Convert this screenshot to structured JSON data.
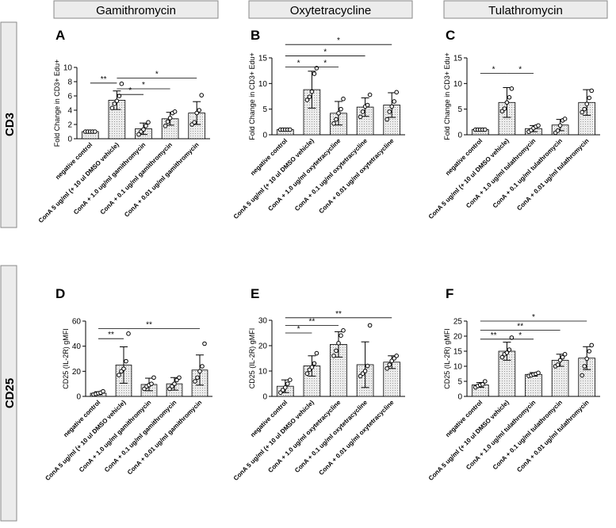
{
  "columns": [
    "Gamithromycin",
    "Oxytetracycline",
    "Tulathromycin"
  ],
  "rows": [
    "CD3",
    "CD25"
  ],
  "chart_data": [
    {
      "type": "bar",
      "panel": "A",
      "row": "CD3",
      "drug": "Gamithromycin",
      "ylabel": "Fold Change in CD3+ Edu+",
      "ylim": [
        0,
        10
      ],
      "yticks": [
        0,
        2,
        4,
        6,
        8,
        10
      ],
      "categories": [
        "negative control",
        "ConA 5 ug/ml  (+ 10 ul DMSO vehicle)",
        "ConA + 1.0 ug/ml gamithromycin",
        "ConA + 0.1 ug/ml gamithromycin",
        "ConA + 0.01 ug/ml gamithromycin"
      ],
      "values": [
        1.0,
        5.4,
        1.4,
        2.8,
        3.6
      ],
      "errors": [
        0.0,
        1.3,
        0.8,
        0.9,
        1.6
      ],
      "points": [
        [
          1,
          1,
          1,
          1,
          1
        ],
        [
          4.3,
          4.9,
          5.3,
          6.0,
          7.7
        ],
        [
          0.6,
          1.0,
          1.3,
          1.8,
          2.3
        ],
        [
          1.8,
          2.4,
          2.9,
          3.6,
          3.8
        ],
        [
          2.0,
          2.3,
          3.6,
          4.0,
          6.1
        ]
      ],
      "significance": [
        {
          "from": 0,
          "to": 1,
          "label": "**",
          "y": 7.8
        },
        {
          "from": 1,
          "to": 2,
          "label": "*",
          "y": 6.2
        },
        {
          "from": 1,
          "to": 3,
          "label": "*",
          "y": 7.0
        },
        {
          "from": 1,
          "to": 4,
          "label": "*",
          "y": 8.5
        }
      ]
    },
    {
      "type": "bar",
      "panel": "B",
      "row": "CD3",
      "drug": "Oxytetracycline",
      "ylabel": "Fold Change in CD3+ Edu+",
      "ylim": [
        0,
        15
      ],
      "yticks": [
        0,
        5,
        10,
        15
      ],
      "categories": [
        "negative control",
        "ConA 5 ug/ml  (+ 10 ul DMSO vehicle)",
        "ConA + 1.0 ug/ml oxytetracycline",
        "ConA + 0.1 ug/ml oxytetracycline",
        "ConA + 0.01 ug/ml oxytetracycline"
      ],
      "values": [
        1.0,
        8.8,
        4.2,
        5.4,
        5.8
      ],
      "errors": [
        0.0,
        3.6,
        2.3,
        1.8,
        2.4
      ],
      "points": [
        [
          1,
          1,
          1,
          1,
          1
        ],
        [
          6.8,
          7.4,
          8.4,
          11.9,
          13.0
        ],
        [
          2.2,
          3.0,
          4.2,
          5.0,
          7.0
        ],
        [
          3.5,
          4.5,
          5.5,
          5.8,
          7.8
        ],
        [
          3.0,
          4.5,
          5.5,
          6.5,
          8.3
        ]
      ],
      "significance": [
        {
          "from": 0,
          "to": 1,
          "label": "*",
          "y": 13.2
        },
        {
          "from": 1,
          "to": 2,
          "label": "*",
          "y": 13.2
        },
        {
          "from": 0,
          "to": 3,
          "label": "*",
          "y": 15.4
        },
        {
          "from": 0,
          "to": 4,
          "label": "*",
          "y": 17.6
        }
      ]
    },
    {
      "type": "bar",
      "panel": "C",
      "row": "CD3",
      "drug": "Tulathromycin",
      "ylabel": "Fold Change in CD3+ Edu+",
      "ylim": [
        0,
        15
      ],
      "yticks": [
        0,
        5,
        10,
        15
      ],
      "categories": [
        "negative control",
        "ConA 5 ug/ml  (+ 10 ul DMSO vehicle)",
        "ConA + 1.0 ug/ml tulathromycin",
        "ConA + 0.1 ug/ml tulathromycin",
        "ConA + 0.01 ug/ml tulathromycin"
      ],
      "values": [
        1.0,
        6.3,
        1.2,
        1.9,
        6.3
      ],
      "errors": [
        0.0,
        2.9,
        0.6,
        1.1,
        2.5
      ],
      "points": [
        [
          1,
          1,
          1,
          1,
          1
        ],
        [
          4.6,
          5.1,
          6.3,
          7.3,
          9.0
        ],
        [
          0.6,
          0.9,
          1.3,
          1.6,
          1.8
        ],
        [
          0.4,
          0.8,
          1.8,
          2.8,
          3.1
        ],
        [
          4.4,
          5.0,
          6.0,
          7.2,
          8.6
        ]
      ],
      "significance": [
        {
          "from": 0,
          "to": 1,
          "label": "*",
          "y": 12.0
        },
        {
          "from": 1,
          "to": 2,
          "label": "*",
          "y": 12.0
        }
      ]
    },
    {
      "type": "bar",
      "panel": "D",
      "row": "CD25",
      "drug": "Gamithromycin",
      "ylabel": "CD25 (IL-2R) gMFI",
      "ylim": [
        0,
        60
      ],
      "yticks": [
        0,
        20,
        40,
        60
      ],
      "categories": [
        "negative control",
        "ConA 5 ug/ml  (+ 10 ul DMSO vehicle)",
        "ConA + 1.0 ug/ml gamithromycin",
        "ConA + 0.1 ug/ml gamithromycin",
        "ConA + 0.01 ug/ml gamithromycin"
      ],
      "values": [
        2.5,
        25.0,
        9.5,
        10.0,
        21.0
      ],
      "errors": [
        1.2,
        14.5,
        5.0,
        5.0,
        12.0
      ],
      "points": [
        [
          1.5,
          2.0,
          2.5,
          3.0,
          4.0
        ],
        [
          17.0,
          20.0,
          22.0,
          28.0,
          50.0
        ],
        [
          6.0,
          8.0,
          9.0,
          10.0,
          15.0
        ],
        [
          6.0,
          8.0,
          10.0,
          13.0,
          15.0
        ],
        [
          12.0,
          15.0,
          20.0,
          24.0,
          42.0
        ]
      ],
      "significance": [
        {
          "from": 0,
          "to": 1,
          "label": "**",
          "y": 46.0
        },
        {
          "from": 0,
          "to": 4,
          "label": "**",
          "y": 54.0
        }
      ]
    },
    {
      "type": "bar",
      "panel": "E",
      "row": "CD25",
      "drug": "Oxytetracycline",
      "ylabel": "CD25 (IL-2R) gMFI",
      "ylim": [
        0,
        30
      ],
      "yticks": [
        0,
        10,
        20,
        30
      ],
      "categories": [
        "negative control",
        "ConA 5 ug/ml  (+ 10 ul DMSO vehicle)",
        "ConA + 1.0 ug/ml oxytetracycline",
        "ConA + 0.1 ug/ml oxytetracycline",
        "ConA + 0.01 ug/ml oxytetracycline"
      ],
      "values": [
        4.0,
        12.0,
        20.5,
        12.5,
        13.5
      ],
      "errors": [
        2.5,
        4.0,
        5.0,
        9.0,
        2.5
      ],
      "points": [
        [
          1.5,
          2.5,
          3.5,
          5.0,
          6.5
        ],
        [
          9.0,
          10.5,
          11.5,
          13.0,
          17.0
        ],
        [
          16.0,
          18.0,
          21.0,
          24.0,
          26.0
        ],
        [
          8.0,
          9.0,
          10.0,
          12.0,
          28.0
        ],
        [
          11.0,
          12.5,
          14.0,
          15.0,
          16.0
        ]
      ],
      "significance": [
        {
          "from": 0,
          "to": 1,
          "label": "*",
          "y": 25.0
        },
        {
          "from": 0,
          "to": 2,
          "label": "**",
          "y": 28.0
        },
        {
          "from": 0,
          "to": 4,
          "label": "**",
          "y": 31.0
        }
      ]
    },
    {
      "type": "bar",
      "panel": "F",
      "row": "CD25",
      "drug": "Tulathromycin",
      "ylabel": "CD25 (IL-2R) gMFI",
      "ylim": [
        0,
        25
      ],
      "yticks": [
        0,
        5,
        10,
        15,
        20,
        25
      ],
      "categories": [
        "negative control",
        "ConA 5 ug/ml  (+ 10 ul DMSO vehicle)",
        "ConA + 1.0 ug/ml tulathromycin",
        "ConA + 0.1 ug/ml tulathromycin",
        "ConA + 0.01 ug/ml tulathromycin"
      ],
      "values": [
        3.8,
        15.0,
        7.3,
        12.0,
        12.7
      ],
      "errors": [
        0.8,
        3.0,
        0.6,
        2.0,
        3.8
      ],
      "points": [
        [
          3.0,
          3.5,
          3.8,
          4.0,
          5.0
        ],
        [
          13.0,
          14.0,
          14.5,
          15.5,
          19.5
        ],
        [
          6.8,
          7.0,
          7.3,
          7.5,
          7.8
        ],
        [
          10.0,
          10.5,
          12.0,
          13.0,
          14.0
        ],
        [
          7.0,
          10.0,
          12.5,
          15.0,
          17.0
        ]
      ],
      "significance": [
        {
          "from": 0,
          "to": 1,
          "label": "**",
          "y": 19.0
        },
        {
          "from": 1,
          "to": 2,
          "label": "*",
          "y": 19.0
        },
        {
          "from": 0,
          "to": 3,
          "label": "**",
          "y": 22.0
        },
        {
          "from": 0,
          "to": 4,
          "label": "*",
          "y": 25.0
        }
      ]
    }
  ]
}
